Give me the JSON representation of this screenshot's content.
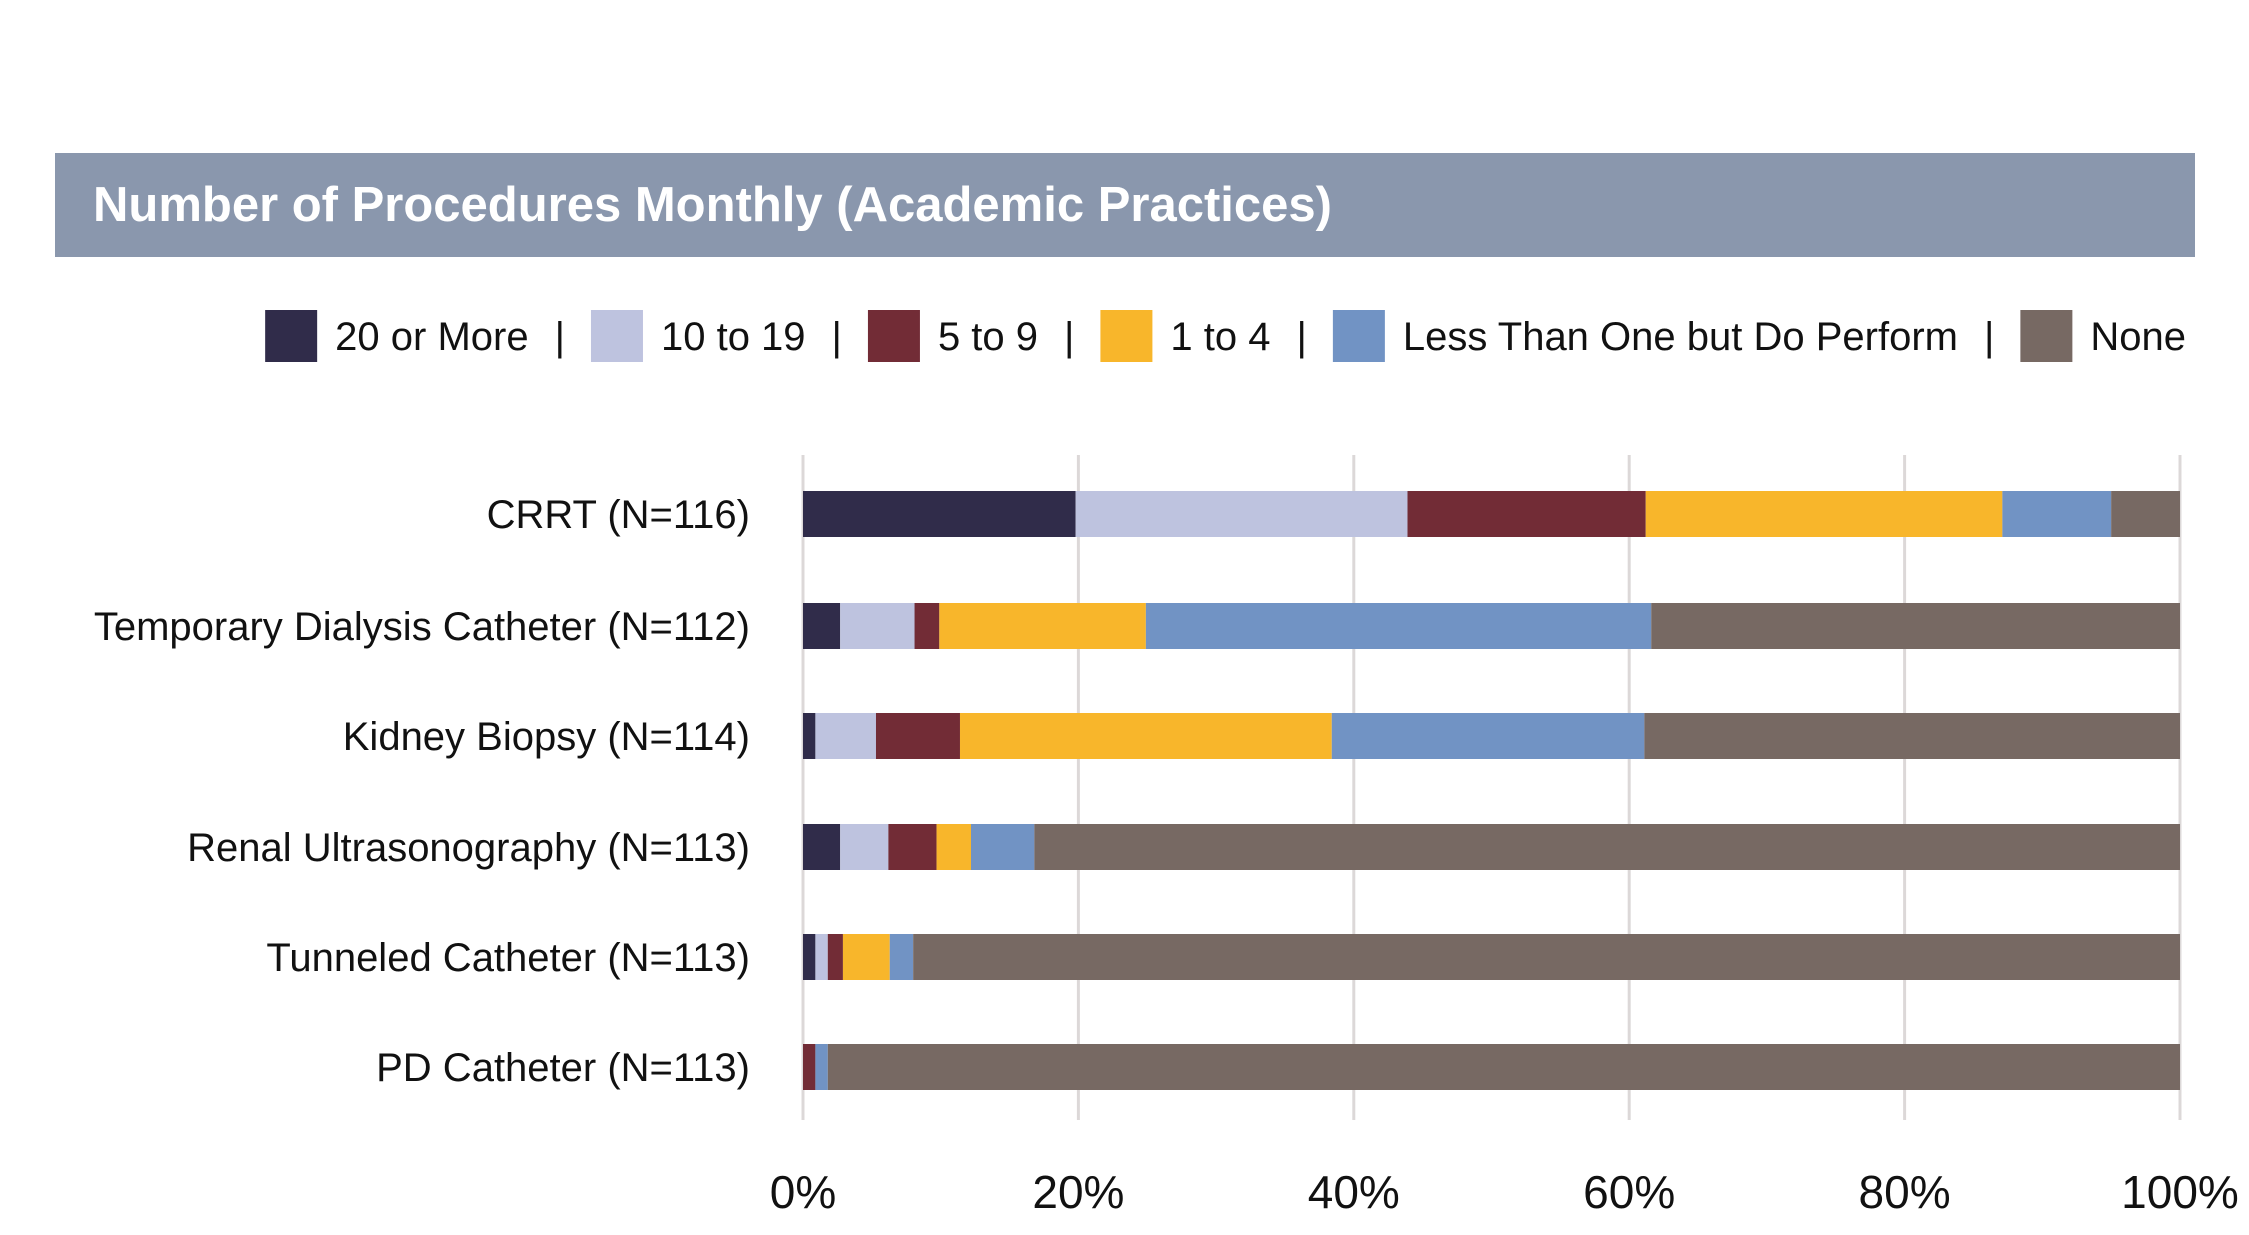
{
  "chart_data": {
    "type": "bar",
    "orientation": "horizontal",
    "stacked": true,
    "title": "Number of Procedures Monthly (Academic Practices)",
    "categories": [
      "CRRT (N=116)",
      "Temporary Dialysis Catheter (N=112)",
      "Kidney Biopsy (N=114)",
      "Renal Ultrasonography (N=113)",
      "Tunneled Catheter (N=113)",
      "PD Catheter (N=113)"
    ],
    "series": [
      {
        "name": "20 or More",
        "color": "#302c4a",
        "values": [
          19.8,
          2.7,
          0.9,
          2.7,
          0.9,
          0.0
        ]
      },
      {
        "name": "10 to 19",
        "color": "#bec3df",
        "values": [
          24.1,
          5.4,
          4.4,
          3.5,
          0.9,
          0.0
        ]
      },
      {
        "name": "5 to 9",
        "color": "#722c36",
        "values": [
          17.3,
          1.8,
          6.1,
          3.5,
          1.1,
          0.9
        ]
      },
      {
        "name": "1 to 4",
        "color": "#f8b62b",
        "values": [
          25.9,
          15.0,
          27.0,
          2.5,
          3.4,
          0.0
        ]
      },
      {
        "name": "Less Than One but Do Perform",
        "color": "#7193c4",
        "values": [
          7.9,
          36.7,
          22.7,
          4.6,
          1.7,
          0.9
        ]
      },
      {
        "name": "None",
        "color": "#776963",
        "values": [
          5.0,
          38.4,
          38.9,
          83.2,
          92.0,
          98.2
        ]
      }
    ],
    "xlim": [
      0,
      100
    ],
    "x_ticks": [
      "0%",
      "20%",
      "40%",
      "60%",
      "80%",
      "100%"
    ],
    "legend_separator": "|",
    "legend_position": "top-right",
    "grid": "vertical"
  }
}
